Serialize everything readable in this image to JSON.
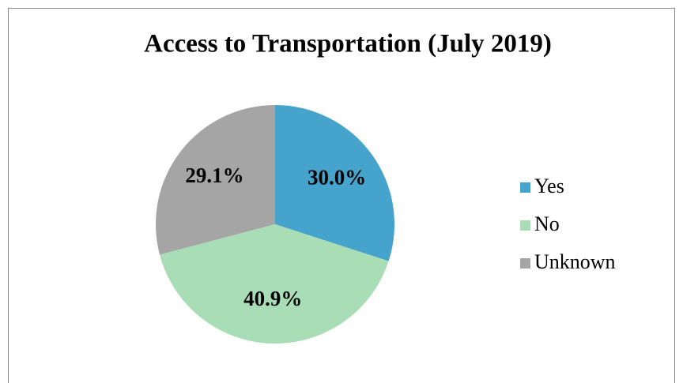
{
  "chart_data": {
    "type": "pie",
    "title": "Access to Transportation (July 2019)",
    "categories": [
      "Yes",
      "No",
      "Unknown"
    ],
    "values": [
      30.0,
      40.9,
      29.1
    ],
    "value_labels": [
      "30.0%",
      "40.9%",
      "29.1%"
    ],
    "colors": [
      "#45a3cc",
      "#a8ddb5",
      "#a5a5a5"
    ],
    "legend": "right"
  }
}
